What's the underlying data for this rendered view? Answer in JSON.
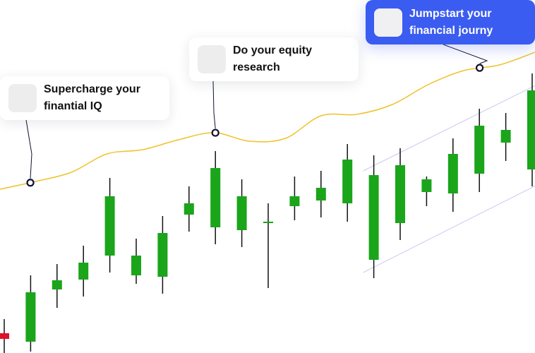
{
  "cards": [
    {
      "label": "Supercharge your finantial IQ"
    },
    {
      "label": "Do your equity research"
    },
    {
      "label": "Jumpstart your financial journy"
    }
  ],
  "colors": {
    "up": "#1aa51a",
    "down": "#e0102a",
    "wick": "#111111",
    "trend": "#f0c12a",
    "channel": "#c9c9f2",
    "marker_stroke": "#111133",
    "primary_card": "#3b5cf0"
  },
  "chart_data": {
    "type": "candlestick",
    "candles": [
      {
        "open": 28,
        "close": 20,
        "high": 48,
        "low": 0
      },
      {
        "open": 16,
        "close": 86,
        "high": 110,
        "low": 2
      },
      {
        "open": 90,
        "close": 103,
        "high": 126,
        "low": 64
      },
      {
        "open": 104,
        "close": 128,
        "high": 152,
        "low": 80
      },
      {
        "open": 138,
        "close": 222,
        "high": 248,
        "low": 114
      },
      {
        "open": 110,
        "close": 138,
        "high": 162,
        "low": 98
      },
      {
        "open": 108,
        "close": 170,
        "high": 194,
        "low": 84
      },
      {
        "open": 196,
        "close": 212,
        "high": 236,
        "low": 172
      },
      {
        "open": 178,
        "close": 262,
        "high": 286,
        "low": 154
      },
      {
        "open": 174,
        "close": 222,
        "high": 246,
        "low": 150
      },
      {
        "open": 186,
        "close": 186,
        "high": 212,
        "low": 92
      },
      {
        "open": 208,
        "close": 222,
        "high": 250,
        "low": 188
      },
      {
        "open": 216,
        "close": 234,
        "high": 258,
        "low": 192
      },
      {
        "open": 212,
        "close": 274,
        "high": 296,
        "low": 186
      },
      {
        "open": 132,
        "close": 252,
        "high": 280,
        "low": 106
      },
      {
        "open": 184,
        "close": 266,
        "high": 290,
        "low": 160
      },
      {
        "open": 228,
        "close": 246,
        "high": 250,
        "low": 208
      },
      {
        "open": 226,
        "close": 282,
        "high": 304,
        "low": 200
      },
      {
        "open": 254,
        "close": 322,
        "high": 346,
        "low": 228
      },
      {
        "open": 298,
        "close": 316,
        "high": 340,
        "low": 272
      },
      {
        "open": 260,
        "close": 372,
        "high": 396,
        "low": 236
      }
    ],
    "trend": [
      232,
      243,
      256,
      282,
      288,
      302,
      312,
      300,
      304,
      336,
      338,
      352,
      380,
      400,
      408,
      426
    ],
    "channel": {
      "start_index": 13.6,
      "end_index": 20.5,
      "lower": [
        114,
        244
      ],
      "upper": [
        258,
        386
      ]
    },
    "markers": [
      1,
      8,
      18
    ],
    "ylim": [
      0,
      500
    ]
  }
}
